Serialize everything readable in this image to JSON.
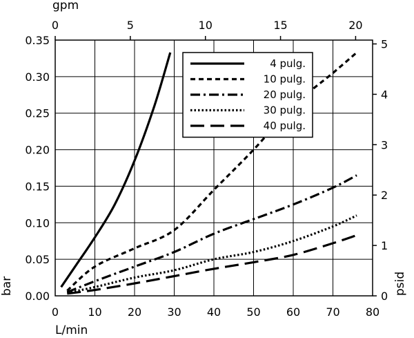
{
  "chart_data": {
    "type": "line",
    "title": "",
    "xlabel": "L/min",
    "ylabel": "bar",
    "xlim": [
      0,
      80
    ],
    "ylim": [
      0,
      0.35
    ],
    "x_ticks": [
      "0",
      "10",
      "20",
      "30",
      "40",
      "50",
      "60",
      "70",
      "80"
    ],
    "y_ticks": [
      "0.00",
      "0.05",
      "0.10",
      "0.15",
      "0.20",
      "0.25",
      "0.30",
      "0.35"
    ],
    "secondary_x": {
      "label": "gpm",
      "lim": [
        0,
        21.13
      ],
      "ticks": [
        "0",
        "5",
        "10",
        "15",
        "20"
      ],
      "tick_values": [
        0,
        5,
        10,
        15,
        20
      ]
    },
    "secondary_y": {
      "label": "psid",
      "lim": [
        0,
        5.076
      ],
      "ticks": [
        "0",
        "1",
        "2",
        "3",
        "4",
        "5"
      ],
      "tick_values": [
        0,
        1,
        2,
        3,
        4,
        5
      ]
    },
    "grid": true,
    "legend_position": "top-right",
    "series": [
      {
        "name": "4 pulg.",
        "dash": "solid",
        "x": [
          1.5,
          5,
          10,
          15,
          20,
          25,
          29
        ],
        "y": [
          0.012,
          0.04,
          0.08,
          0.125,
          0.185,
          0.26,
          0.333
        ]
      },
      {
        "name": "10 pulg.",
        "dash": "short-dash",
        "x": [
          3,
          10,
          20,
          30,
          40,
          50,
          60,
          70,
          76
        ],
        "y": [
          0.007,
          0.04,
          0.065,
          0.09,
          0.145,
          0.2,
          0.26,
          0.305,
          0.333
        ]
      },
      {
        "name": "20 pulg.",
        "dash": "dash-dot",
        "x": [
          3,
          10,
          20,
          30,
          40,
          50,
          60,
          70,
          76
        ],
        "y": [
          0.005,
          0.02,
          0.04,
          0.06,
          0.085,
          0.105,
          0.125,
          0.148,
          0.165
        ]
      },
      {
        "name": "30 pulg.",
        "dash": "dotted",
        "x": [
          3,
          10,
          20,
          30,
          40,
          50,
          60,
          70,
          76
        ],
        "y": [
          0.004,
          0.012,
          0.025,
          0.035,
          0.05,
          0.06,
          0.075,
          0.095,
          0.11
        ]
      },
      {
        "name": "40 pulg.",
        "dash": "long-dash",
        "x": [
          3,
          10,
          20,
          30,
          40,
          50,
          60,
          70,
          76
        ],
        "y": [
          0.003,
          0.008,
          0.017,
          0.027,
          0.037,
          0.046,
          0.056,
          0.072,
          0.083
        ]
      }
    ]
  }
}
